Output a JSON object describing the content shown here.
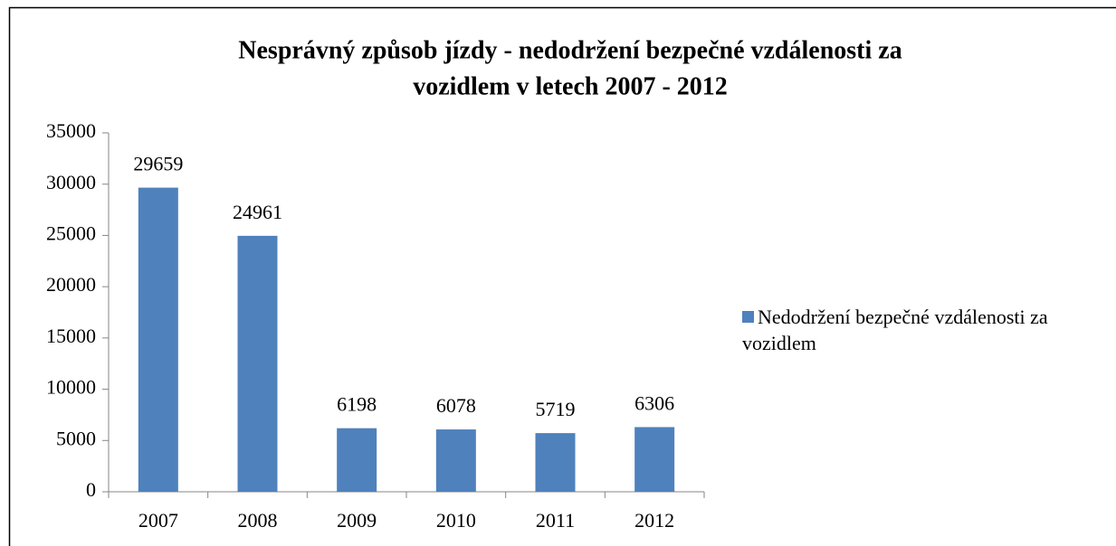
{
  "chart_data": {
    "type": "bar",
    "title": [
      "Nesprávný způsob jízdy - nedodržení bezpečné vzdálenosti za",
      "vozidlem v letech 2007 - 2012"
    ],
    "categories": [
      "2007",
      "2008",
      "2009",
      "2010",
      "2011",
      "2012"
    ],
    "series": [
      {
        "name": "Nedodržení bezpečné vzdálenosti za vozidlem",
        "color": "#4f81bd",
        "values": [
          29659,
          24961,
          6198,
          6078,
          5719,
          6306
        ]
      }
    ],
    "ylim": [
      0,
      35000
    ],
    "yticks": [
      0,
      5000,
      10000,
      15000,
      20000,
      25000,
      30000,
      35000
    ],
    "legend": "right"
  }
}
